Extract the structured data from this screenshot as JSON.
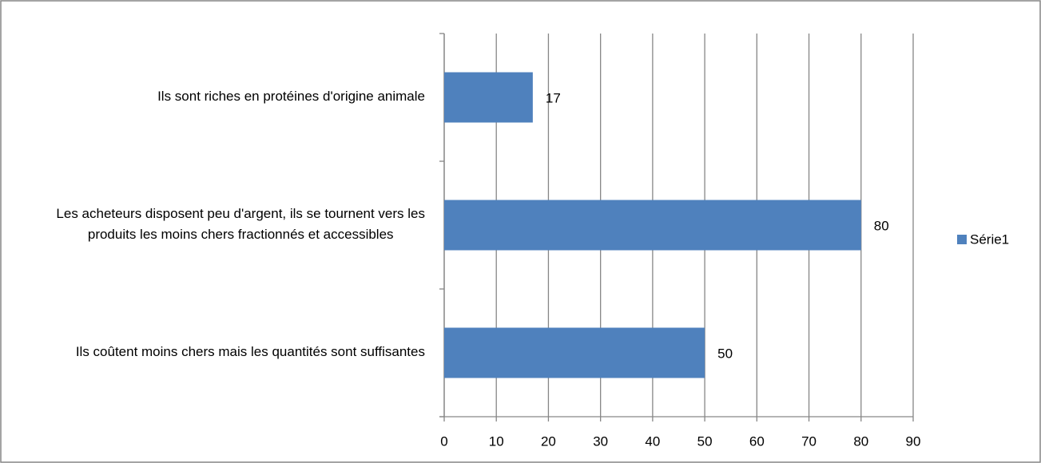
{
  "chart_data": {
    "type": "bar",
    "orientation": "horizontal",
    "categories": [
      "Ils sont riches en protéines d'origine animale",
      "Les acheteurs disposent peu d'argent, ils se tournent vers les produits les moins chers fractionnés et accessibles",
      "Ils coûtent moins chers mais les quantités sont suffisantes"
    ],
    "series": [
      {
        "name": "Série1",
        "color": "#4f81bd",
        "values": [
          17,
          80,
          50
        ]
      }
    ],
    "xlim": [
      0,
      90
    ],
    "xticks": [
      0,
      10,
      20,
      30,
      40,
      50,
      60,
      70,
      80,
      90
    ],
    "grid": true,
    "legend": "right"
  }
}
